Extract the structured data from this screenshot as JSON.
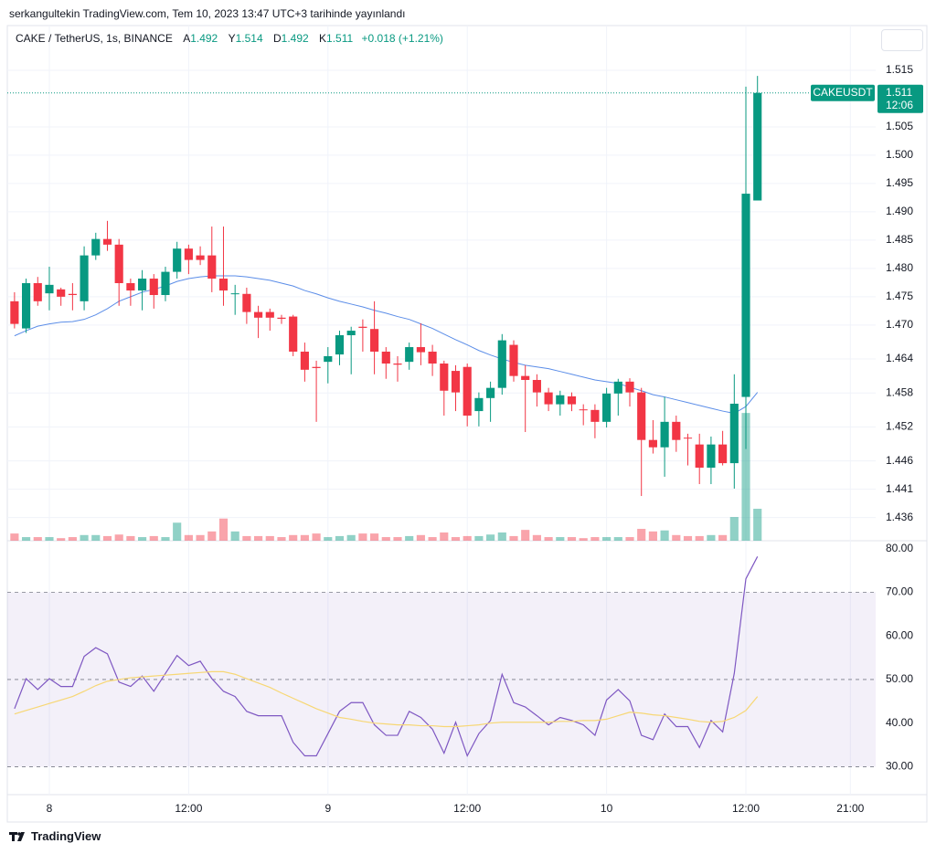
{
  "header": {
    "publisher": "serkangultekin TradingView.com, Tem 10, 2023 13:47 UTC+3 tarihinde yayınlandı"
  },
  "legend": {
    "symbol": "CAKE / TetherUS, 1s, BINANCE",
    "ohlc": [
      {
        "label": "A",
        "value": 1.492
      },
      {
        "label": "Y",
        "value": 1.514
      },
      {
        "label": "D",
        "value": 1.492
      },
      {
        "label": "K",
        "value": 1.511
      }
    ],
    "change": "+0.018 (+1.21%)"
  },
  "footer": {
    "brand": "TradingView"
  },
  "chart_data": [
    {
      "type": "candlestick",
      "x": [
        0,
        1,
        2,
        3,
        4,
        5,
        6,
        7,
        8,
        9,
        10,
        11,
        12,
        13,
        14,
        15,
        16,
        17,
        18,
        19,
        20,
        21,
        22,
        23,
        24,
        25,
        26,
        27,
        28,
        29,
        30,
        31,
        32,
        33,
        34,
        35,
        36,
        37,
        38,
        39,
        40,
        41,
        42,
        43,
        44,
        45,
        46,
        47,
        48,
        49,
        50,
        51,
        52,
        53,
        54,
        55,
        56,
        57,
        58,
        59,
        60,
        61,
        62,
        63,
        64
      ],
      "xlim": [
        -0.62,
        74.18
      ],
      "open": [
        1.4742,
        1.4694,
        1.4774,
        1.4756,
        1.4763,
        1.4755,
        1.4742,
        1.4823,
        1.4852,
        1.4842,
        1.4774,
        1.4761,
        1.4782,
        1.4753,
        1.4794,
        1.4835,
        1.4823,
        1.4823,
        1.4782,
        1.4755,
        1.4755,
        1.4723,
        1.4723,
        1.4713,
        1.4715,
        1.4653,
        1.4626,
        1.4635,
        1.4648,
        1.4682,
        1.4697,
        1.4693,
        1.4653,
        1.4632,
        1.4635,
        1.4661,
        1.4653,
        1.4632,
        1.4619,
        1.4626,
        1.4548,
        1.4571,
        1.4589,
        1.4665,
        1.461,
        1.4603,
        1.4581,
        1.456,
        1.4574,
        1.4551,
        1.455,
        1.4529,
        1.4579,
        1.46,
        1.4581,
        1.4497,
        1.4484,
        1.4529,
        1.4501,
        1.4489,
        1.4448,
        1.4489,
        1.4456,
        1.4573,
        1.492
      ],
      "high": [
        1.4758,
        1.4782,
        1.4785,
        1.4803,
        1.4766,
        1.4774,
        1.4839,
        1.4863,
        1.4884,
        1.4852,
        1.4782,
        1.4797,
        1.479,
        1.4803,
        1.4847,
        1.4842,
        1.4839,
        1.4874,
        1.4874,
        1.4771,
        1.4766,
        1.4734,
        1.4729,
        1.4718,
        1.4718,
        1.4669,
        1.4637,
        1.4661,
        1.469,
        1.4697,
        1.471,
        1.4742,
        1.4661,
        1.4645,
        1.4669,
        1.4703,
        1.4665,
        1.4637,
        1.4629,
        1.4632,
        1.4581,
        1.46,
        1.4684,
        1.4673,
        1.4629,
        1.4613,
        1.4589,
        1.4584,
        1.4581,
        1.456,
        1.456,
        1.4589,
        1.4605,
        1.4606,
        1.4589,
        1.4532,
        1.4573,
        1.454,
        1.4508,
        1.4508,
        1.4503,
        1.4513,
        1.4613,
        1.5121,
        1.514
      ],
      "low": [
        1.4694,
        1.4686,
        1.4734,
        1.4726,
        1.4734,
        1.4726,
        1.4726,
        1.4815,
        1.4831,
        1.4734,
        1.4734,
        1.4726,
        1.4729,
        1.4742,
        1.4782,
        1.479,
        1.4806,
        1.4758,
        1.4734,
        1.4718,
        1.4702,
        1.4677,
        1.469,
        1.4702,
        1.4645,
        1.46,
        1.4529,
        1.4597,
        1.4629,
        1.4613,
        1.4653,
        1.4613,
        1.4605,
        1.46,
        1.4621,
        1.4629,
        1.461,
        1.454,
        1.4548,
        1.4521,
        1.4521,
        1.4529,
        1.4577,
        1.46,
        1.4511,
        1.4556,
        1.4548,
        1.454,
        1.4548,
        1.4523,
        1.45,
        1.4519,
        1.454,
        1.4556,
        1.4398,
        1.4473,
        1.4432,
        1.4476,
        1.4452,
        1.4419,
        1.4419,
        1.4452,
        1.4411,
        1.4481,
        1.492
      ],
      "close": [
        1.4702,
        1.4774,
        1.4742,
        1.4771,
        1.475,
        1.4753,
        1.4823,
        1.4852,
        1.4842,
        1.4774,
        1.4761,
        1.4782,
        1.4753,
        1.4794,
        1.4835,
        1.4815,
        1.4815,
        1.4782,
        1.4761,
        1.4756,
        1.4723,
        1.4713,
        1.4713,
        1.4711,
        1.4653,
        1.4621,
        1.4624,
        1.4645,
        1.4682,
        1.469,
        1.4695,
        1.4653,
        1.4632,
        1.463,
        1.4661,
        1.4652,
        1.4632,
        1.4584,
        1.4581,
        1.454,
        1.4571,
        1.4589,
        1.4673,
        1.461,
        1.4603,
        1.4581,
        1.456,
        1.4576,
        1.456,
        1.455,
        1.4529,
        1.4579,
        1.46,
        1.4581,
        1.4497,
        1.4484,
        1.4529,
        1.4497,
        1.45,
        1.4448,
        1.4489,
        1.4456,
        1.4561,
        1.4932,
        1.511
      ],
      "up_color": "#089981",
      "down_color": "#f23645",
      "ma": {
        "color": "#5b8de8",
        "values": [
          1.4681,
          1.469,
          1.4698,
          1.4702,
          1.4705,
          1.4706,
          1.471,
          1.4718,
          1.4729,
          1.4742,
          1.475,
          1.4758,
          1.4763,
          1.4769,
          1.4777,
          1.4782,
          1.4785,
          1.4787,
          1.4787,
          1.4787,
          1.4785,
          1.4782,
          1.4779,
          1.4774,
          1.4769,
          1.4761,
          1.4755,
          1.4748,
          1.4742,
          1.4737,
          1.4732,
          1.4726,
          1.4721,
          1.4715,
          1.471,
          1.4702,
          1.4694,
          1.4684,
          1.4674,
          1.4665,
          1.4655,
          1.4647,
          1.464,
          1.4634,
          1.4629,
          1.4626,
          1.4623,
          1.4618,
          1.4613,
          1.4608,
          1.4603,
          1.46,
          1.4597,
          1.459,
          1.4584,
          1.4577,
          1.4573,
          1.4568,
          1.4563,
          1.4558,
          1.4553,
          1.4548,
          1.4544,
          1.4556,
          1.4581
        ]
      },
      "volume": {
        "vlim": [
          0,
          100
        ],
        "up_color": "rgba(8,153,129,0.45)",
        "down_color": "rgba(242,54,69,0.45)",
        "values": [
          1.4,
          0.7,
          0.7,
          0.7,
          0.5,
          0.7,
          1.1,
          1.1,
          0.9,
          1.2,
          0.9,
          0.7,
          0.9,
          0.7,
          3.5,
          1.1,
          1.1,
          1.8,
          4.3,
          1.8,
          0.9,
          0.9,
          0.9,
          0.7,
          1.1,
          1.1,
          1.4,
          0.7,
          0.9,
          1.1,
          1.4,
          1.4,
          0.7,
          0.7,
          0.9,
          1.1,
          0.7,
          1.6,
          0.7,
          0.9,
          0.9,
          1.2,
          1.6,
          0.9,
          2.1,
          1.1,
          0.7,
          0.7,
          0.7,
          0.5,
          0.7,
          0.7,
          0.7,
          0.7,
          2.3,
          1.8,
          2.0,
          1.1,
          0.9,
          0.9,
          1.1,
          1.1,
          4.6,
          24.8,
          6.2
        ]
      },
      "ylim": [
        1.4319,
        1.5229
      ],
      "yticks": [
        1.436,
        1.441,
        1.446,
        1.452,
        1.458,
        1.464,
        {
          "value": 1.47,
          "label": "1.470"
        },
        1.475,
        {
          "value": 1.48,
          "label": "1.480"
        },
        1.485,
        {
          "value": 1.49,
          "label": "1.490"
        },
        1.495,
        {
          "value": 1.5,
          "label": "1.500"
        },
        1.505,
        1.515
      ],
      "grid": true,
      "last_price": {
        "symbol": "CAKEUSDT",
        "value": 1.511,
        "countdown": "12:06",
        "color": "#089981"
      }
    },
    {
      "type": "line",
      "x": [
        0,
        1,
        2,
        3,
        4,
        5,
        6,
        7,
        8,
        9,
        10,
        11,
        12,
        13,
        14,
        15,
        16,
        17,
        18,
        19,
        20,
        21,
        22,
        23,
        24,
        25,
        26,
        27,
        28,
        29,
        30,
        31,
        32,
        33,
        34,
        35,
        36,
        37,
        38,
        39,
        40,
        41,
        42,
        43,
        44,
        45,
        46,
        47,
        48,
        49,
        50,
        51,
        52,
        53,
        54,
        55,
        56,
        57,
        58,
        59,
        60,
        61,
        62,
        63,
        64
      ],
      "xlim": [
        -0.62,
        74.18
      ],
      "xticks": [
        {
          "value": 3,
          "label": "8"
        },
        {
          "value": 15,
          "label": "12:00"
        },
        {
          "value": 27,
          "label": "9"
        },
        {
          "value": 39,
          "label": "12:00"
        },
        {
          "value": 51,
          "label": "10"
        },
        {
          "value": 63,
          "label": "12:00"
        },
        {
          "value": 72,
          "label": "21:00"
        }
      ],
      "series": [
        {
          "color": "#7e57c2",
          "values": [
            43.3,
            50.2,
            47.7,
            50.2,
            48.4,
            48.4,
            55.3,
            57.3,
            55.9,
            49.4,
            48.4,
            50.8,
            47.3,
            51.4,
            55.5,
            53.2,
            54.2,
            50.2,
            47.3,
            46.1,
            42.7,
            41.7,
            41.7,
            41.7,
            35.6,
            32.5,
            32.5,
            37.6,
            42.7,
            44.7,
            44.7,
            39.6,
            37.2,
            37.2,
            42.7,
            41.3,
            38.6,
            33.1,
            40.2,
            32.5,
            37.6,
            40.6,
            51.2,
            44.7,
            43.7,
            41.7,
            39.6,
            41.3,
            40.6,
            39.6,
            37.2,
            45.3,
            47.7,
            45.1,
            37.2,
            36.2,
            42.1,
            39.2,
            39.2,
            34.4,
            40.6,
            38.0,
            51.4,
            73.1,
            78.2
          ]
        },
        {
          "color": "#f7d774",
          "values": [
            42.1,
            42.9,
            43.7,
            44.5,
            45.3,
            46.1,
            47.3,
            48.6,
            49.6,
            50.0,
            50.4,
            50.6,
            50.8,
            51.0,
            51.2,
            51.4,
            51.6,
            51.8,
            51.8,
            51.2,
            50.2,
            49.2,
            48.2,
            46.9,
            45.7,
            44.5,
            43.3,
            42.3,
            41.3,
            40.9,
            40.4,
            40.0,
            39.8,
            39.6,
            39.6,
            39.4,
            39.4,
            39.2,
            39.2,
            39.4,
            39.6,
            40.0,
            40.2,
            40.2,
            40.2,
            40.2,
            40.2,
            40.4,
            40.4,
            40.6,
            40.6,
            40.9,
            41.7,
            42.5,
            42.3,
            41.9,
            41.7,
            41.3,
            40.9,
            40.4,
            40.2,
            40.4,
            41.3,
            42.9,
            46.1
          ]
        }
      ],
      "ylim": [
        23.6,
        81.83
      ],
      "yticks": [
        {
          "value": 80,
          "label": "80.00"
        },
        {
          "value": 70,
          "label": "70.00"
        },
        {
          "value": 60,
          "label": "60.00"
        },
        {
          "value": 50,
          "label": "50.00"
        },
        {
          "value": 40,
          "label": "40.00"
        },
        {
          "value": 30,
          "label": "30.00"
        }
      ],
      "band": [
        30,
        70
      ],
      "band_color": "rgba(126,87,194,0.09)",
      "levels": [
        70,
        50,
        30
      ]
    }
  ]
}
